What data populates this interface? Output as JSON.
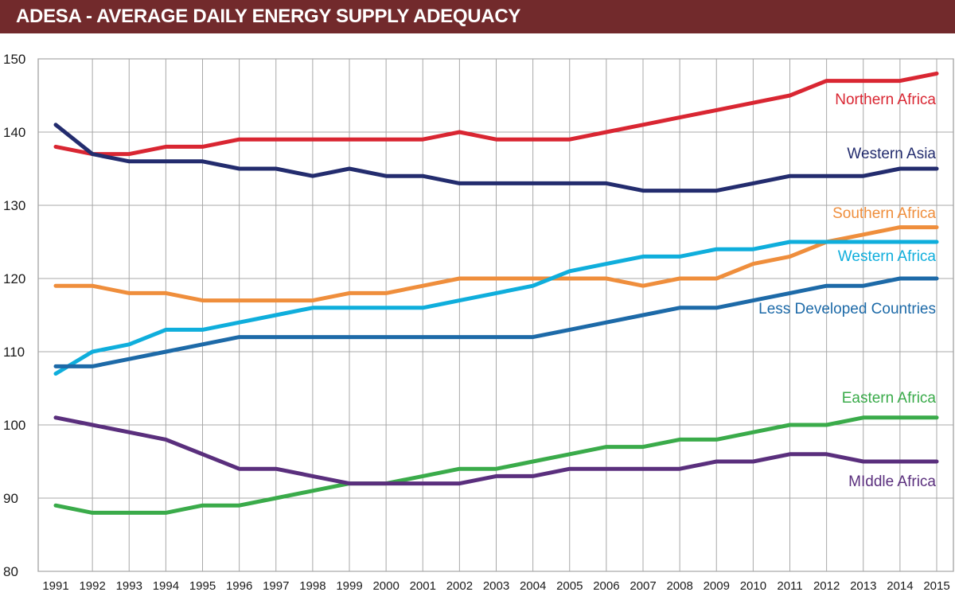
{
  "chart_data": {
    "type": "line",
    "title": "ADESA - AVERAGE DAILY ENERGY SUPPLY ADEQUACY",
    "xlabel": "",
    "ylabel": "",
    "ylim": [
      80,
      150
    ],
    "yticks": [
      80,
      90,
      100,
      110,
      120,
      130,
      140,
      150
    ],
    "grid": true,
    "categories": [
      "1991",
      "1992",
      "1993",
      "1994",
      "1995",
      "1996",
      "1997",
      "1998",
      "1999",
      "2000",
      "2001",
      "2002",
      "2003",
      "2004",
      "2005",
      "2006",
      "2007",
      "2008",
      "2009",
      "2010",
      "2011",
      "2012",
      "2013",
      "2014",
      "2015"
    ],
    "series": [
      {
        "name": "Northern Africa",
        "color": "#d92632",
        "values": [
          138,
          137,
          137,
          138,
          138,
          139,
          139,
          139,
          139,
          139,
          139,
          140,
          139,
          139,
          139,
          140,
          141,
          142,
          143,
          144,
          145,
          147,
          147,
          147,
          148
        ]
      },
      {
        "name": "Western Asia",
        "color": "#232c6e",
        "values": [
          141,
          137,
          136,
          136,
          136,
          135,
          135,
          134,
          135,
          134,
          134,
          133,
          133,
          133,
          133,
          133,
          132,
          132,
          132,
          133,
          134,
          134,
          134,
          135,
          135
        ]
      },
      {
        "name": "Southern Africa",
        "color": "#ef8e3c",
        "values": [
          119,
          119,
          118,
          118,
          117,
          117,
          117,
          117,
          118,
          118,
          119,
          120,
          120,
          120,
          120,
          120,
          119,
          120,
          120,
          122,
          123,
          125,
          126,
          127,
          127
        ]
      },
      {
        "name": "Western Africa",
        "color": "#0faedc",
        "values": [
          107,
          110,
          111,
          113,
          113,
          114,
          115,
          116,
          116,
          116,
          116,
          117,
          118,
          119,
          121,
          122,
          123,
          123,
          124,
          124,
          125,
          125,
          125,
          125,
          125
        ]
      },
      {
        "name": "Less Developed Countries",
        "color": "#1d6aa8",
        "values": [
          108,
          108,
          109,
          110,
          111,
          112,
          112,
          112,
          112,
          112,
          112,
          112,
          112,
          112,
          113,
          114,
          115,
          116,
          116,
          117,
          118,
          119,
          119,
          120,
          120
        ]
      },
      {
        "name": "Eastern Africa",
        "color": "#3aab4a",
        "values": [
          89,
          88,
          88,
          88,
          89,
          89,
          90,
          91,
          92,
          92,
          93,
          94,
          94,
          95,
          96,
          97,
          97,
          98,
          98,
          99,
          100,
          100,
          101,
          101,
          101
        ]
      },
      {
        "name": "MIddle Africa",
        "color": "#5a2f7d",
        "values": [
          101,
          100,
          99,
          98,
          96,
          94,
          94,
          93,
          92,
          92,
          92,
          92,
          93,
          93,
          94,
          94,
          94,
          94,
          95,
          95,
          96,
          96,
          95,
          95,
          95
        ]
      }
    ]
  }
}
